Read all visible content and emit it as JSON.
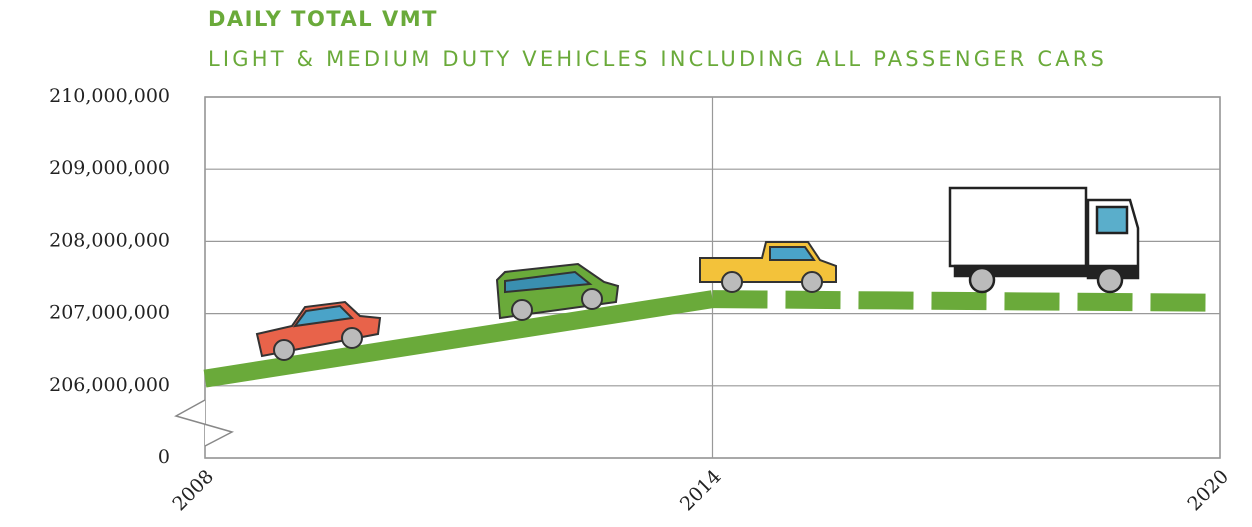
{
  "chart_data": {
    "type": "line",
    "title": "DAILY TOTAL VMT",
    "subtitle": "LIGHT & MEDIUM DUTY VEHICLES INCLUDING ALL PASSENGER CARS",
    "x": [
      2008,
      2014,
      2020
    ],
    "xlim": [
      2008,
      2020
    ],
    "xticks": [
      2008,
      2014,
      2020
    ],
    "series": [
      {
        "color": "#6aaa3a",
        "style": "solid",
        "values": [
          206100000,
          207200000,
          null
        ]
      },
      {
        "color": "#6aaa3a",
        "style": "dashed",
        "values": [
          null,
          207200000,
          207150000
        ]
      }
    ],
    "ylim": [
      0,
      210000000
    ],
    "ybreak": [
      0,
      205000000
    ],
    "yticks": [
      0,
      {
        "value": 206000000,
        "label": "206,000,000"
      },
      {
        "value": 207000000,
        "label": "207,000,000"
      },
      {
        "value": 208000000,
        "label": "208,000,000"
      },
      {
        "value": 209000000,
        "label": "209,000,000"
      },
      {
        "value": 210000000,
        "label": "210,000,000"
      }
    ],
    "grid": true
  }
}
